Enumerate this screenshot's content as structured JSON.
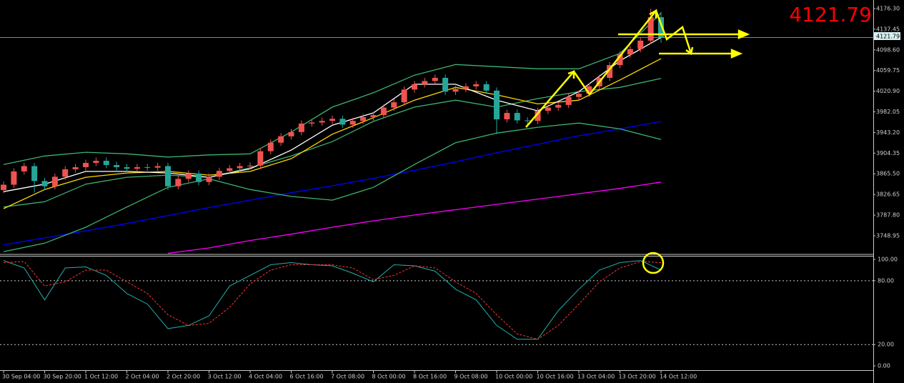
{
  "chart_data": [
    {
      "type": "candlestick",
      "categories": [
        "30 Sep 04:00",
        null,
        null,
        null,
        "30 Sep 20:00",
        null,
        null,
        null,
        "1 Oct 12:00",
        null,
        null,
        null,
        "2 Oct 04:00",
        null,
        null,
        null,
        "2 Oct 20:00",
        null,
        null,
        null,
        "3 Oct 12:00",
        null,
        null,
        null,
        "4 Oct 04:00",
        null,
        null,
        null,
        "6 Oct 16:00",
        null,
        null,
        null,
        "7 Oct 08:00",
        null,
        null,
        null,
        "8 Oct 00:00",
        null,
        null,
        null,
        "8 Oct 16:00",
        null,
        null,
        null,
        "9 Oct 08:00",
        null,
        null,
        null,
        "10 Oct 00:00",
        null,
        null,
        null,
        "10 Oct 16:00",
        null,
        null,
        null,
        "13 Oct 04:00",
        null,
        null,
        null,
        "13 Oct 20:00",
        null,
        null,
        null,
        "14 Oct 12:00"
      ],
      "open": [
        3835,
        3845,
        3870,
        3880,
        3852,
        3842,
        3860,
        3874,
        3878,
        3886,
        3890,
        3882,
        3878,
        3875,
        3878,
        3877,
        3880,
        3842,
        3856,
        3866,
        3850,
        3860,
        3871,
        3876,
        3880,
        3881,
        3908,
        3924,
        3936,
        3944,
        3960,
        3962,
        3965,
        3969,
        3958,
        3965,
        3972,
        3976,
        3990,
        4000,
        4024,
        4034,
        4040,
        4046,
        4020,
        4025,
        4030,
        4034,
        4022,
        3968,
        3980,
        3966,
        3965,
        3984,
        3990,
        3995,
        4010,
        4016,
        4030,
        4046,
        4070,
        4090,
        4100,
        4116,
        4160
      ],
      "high": [
        3851,
        3876,
        3886,
        3886,
        3858,
        3866,
        3880,
        3884,
        3892,
        3896,
        3896,
        3888,
        3884,
        3884,
        3884,
        3886,
        3886,
        3862,
        3872,
        3872,
        3866,
        3877,
        3882,
        3886,
        3887,
        3914,
        3930,
        3942,
        3950,
        3966,
        3968,
        3971,
        3975,
        3975,
        3971,
        3978,
        3982,
        3996,
        4006,
        4030,
        4040,
        4046,
        4052,
        4052,
        4031,
        4036,
        4040,
        4040,
        4028,
        3986,
        3986,
        3972,
        3990,
        3996,
        4001,
        4016,
        4022,
        4036,
        4052,
        4076,
        4096,
        4106,
        4122,
        4176,
        4170
      ],
      "low": [
        3829,
        3839,
        3864,
        3830,
        3836,
        3836,
        3854,
        3868,
        3872,
        3880,
        3876,
        3872,
        3869,
        3869,
        3871,
        3871,
        3835,
        3836,
        3850,
        3844,
        3844,
        3854,
        3865,
        3870,
        3874,
        3875,
        3902,
        3918,
        3930,
        3938,
        3954,
        3956,
        3959,
        3952,
        3952,
        3959,
        3966,
        3970,
        3984,
        3994,
        4018,
        4028,
        4034,
        4014,
        4014,
        4019,
        4024,
        4016,
        3940,
        3962,
        3960,
        3959,
        3959,
        3978,
        3984,
        3989,
        4004,
        4010,
        4024,
        4040,
        4064,
        4084,
        4094,
        4110,
        4112
      ],
      "close": [
        3845,
        3870,
        3880,
        3852,
        3842,
        3860,
        3874,
        3878,
        3886,
        3890,
        3882,
        3878,
        3875,
        3878,
        3877,
        3880,
        3842,
        3856,
        3866,
        3850,
        3860,
        3871,
        3876,
        3880,
        3881,
        3908,
        3924,
        3936,
        3944,
        3960,
        3962,
        3965,
        3969,
        3958,
        3965,
        3972,
        3976,
        3990,
        4000,
        4024,
        4034,
        4040,
        4046,
        4020,
        4025,
        4030,
        4034,
        4022,
        3968,
        3980,
        3966,
        3965,
        3984,
        3990,
        3995,
        4010,
        4016,
        4030,
        4046,
        4070,
        4090,
        4100,
        4116,
        4160,
        4121.79
      ],
      "up_color": "#ef5350",
      "down_color": "#26a69a",
      "overlay_x": [
        0,
        4,
        8,
        12,
        16,
        20,
        24,
        28,
        32,
        36,
        40,
        44,
        48,
        52,
        56,
        60,
        64
      ],
      "overlays": [
        {
          "color": "#0000ff",
          "values": [
            3732,
            3745,
            3758,
            3772,
            3787,
            3802,
            3816,
            3830,
            3843,
            3857,
            3872,
            3888,
            3905,
            3921,
            3937,
            3950,
            3964
          ]
        },
        {
          "color": "#ff00ff",
          "values": [
            null,
            null,
            null,
            null,
            3716,
            3726,
            3740,
            3752,
            3765,
            3777,
            3788,
            3798,
            3808,
            3818,
            3828,
            3838,
            3850
          ]
        },
        {
          "color": "#3cb371",
          "values": [
            3883,
            3899,
            3906,
            3903,
            3897,
            3901,
            3903,
            3944,
            3991,
            4018,
            4051,
            4071,
            4067,
            4063,
            4063,
            4092,
            4168
          ]
        },
        {
          "color": "#3cb371",
          "values": [
            3803,
            3813,
            3846,
            3859,
            3863,
            3859,
            3877,
            3899,
            3926,
            3964,
            3991,
            4004,
            3991,
            4007,
            4020,
            4028,
            4045
          ]
        },
        {
          "color": "#3cb371",
          "values": [
            3719,
            3735,
            3765,
            3803,
            3840,
            3856,
            3836,
            3823,
            3816,
            3840,
            3883,
            3924,
            3942,
            3953,
            3961,
            3950,
            3930
          ]
        },
        {
          "color": "#ffd700",
          "values": [
            3800,
            3836,
            3859,
            3867,
            3870,
            3863,
            3870,
            3894,
            3940,
            3971,
            4004,
            4028,
            4014,
            3997,
            4004,
            4042,
            4082
          ]
        },
        {
          "color": "#ffffff",
          "values": [
            3832,
            3846,
            3870,
            3870,
            3867,
            3859,
            3875,
            3910,
            3957,
            3980,
            4034,
            4034,
            4004,
            3984,
            4020,
            4078,
            4122
          ]
        }
      ],
      "ylim": [
        3715.3,
        4192.4
      ],
      "yticks": [
        {
          "value": 4176.3,
          "label": "4176.30"
        },
        4137.45,
        {
          "value": 4098.6,
          "label": "4098.60"
        },
        4059.75,
        {
          "value": 4020.9,
          "label": "4020.90"
        },
        3982.05,
        {
          "value": 3943.2,
          "label": "3943.20"
        },
        3904.35,
        {
          "value": 3865.5,
          "label": "3865.50"
        },
        3826.65,
        {
          "value": 3787.8,
          "label": "3787.80"
        },
        3748.95
      ],
      "current_price": 4121.79,
      "current_price_color": "#20b2aa",
      "big_price_color": "#ff0000"
    },
    {
      "type": "line",
      "x": [
        0,
        2,
        4,
        6,
        8,
        10,
        12,
        14,
        16,
        18,
        20,
        22,
        24,
        26,
        28,
        30,
        32,
        34,
        36,
        38,
        40,
        42,
        44,
        46,
        48,
        50,
        52,
        54,
        56,
        58,
        60,
        62,
        64
      ],
      "series": [
        {
          "color": "#20b2aa",
          "dashed": false,
          "values": [
            99,
            92,
            62,
            92,
            93,
            85,
            68,
            58,
            35,
            38,
            47,
            75,
            85,
            95,
            97,
            95,
            94,
            87,
            79,
            95,
            94,
            89,
            72,
            62,
            38,
            25,
            25,
            52,
            72,
            90,
            97,
            99,
            90
          ]
        },
        {
          "color": "#ff3333",
          "dashed": true,
          "values": [
            97,
            98,
            75,
            79,
            90,
            90,
            79,
            68,
            48,
            38,
            40,
            55,
            77,
            90,
            95,
            95,
            95,
            92,
            81,
            85,
            94,
            92,
            79,
            68,
            48,
            30,
            25,
            38,
            58,
            79,
            92,
            98,
            97
          ]
        }
      ],
      "ylim": [
        -4,
        103.4
      ],
      "yticks": [
        {
          "value": 100,
          "label": "100.00"
        },
        {
          "value": 80,
          "label": "80.00"
        },
        {
          "value": 20,
          "label": "20.00"
        },
        {
          "value": 0,
          "label": "0.00"
        }
      ],
      "levels": [
        80,
        20
      ]
    }
  ]
}
